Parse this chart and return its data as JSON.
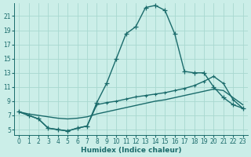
{
  "xlabel": "Humidex (Indice chaleur)",
  "bg_color": "#cbeee8",
  "line_color": "#1a6b6b",
  "grid_color": "#a8d8d0",
  "xlim": [
    -0.5,
    23.5
  ],
  "ylim": [
    4.2,
    22.8
  ],
  "xticks": [
    0,
    1,
    2,
    3,
    4,
    5,
    6,
    7,
    8,
    9,
    10,
    11,
    12,
    13,
    14,
    15,
    16,
    17,
    18,
    19,
    20,
    21,
    22,
    23
  ],
  "yticks": [
    5,
    7,
    9,
    11,
    13,
    15,
    17,
    19,
    21
  ],
  "curve1_x": [
    0,
    1,
    2,
    3,
    4,
    5,
    6,
    7,
    8,
    9,
    10,
    11,
    12,
    13,
    14,
    15,
    16,
    17,
    18,
    19,
    20,
    21,
    22,
    23
  ],
  "curve1_y": [
    7.5,
    7.0,
    6.5,
    5.2,
    5.0,
    4.8,
    5.2,
    5.5,
    8.8,
    11.5,
    15.0,
    18.5,
    19.5,
    22.2,
    22.5,
    21.8,
    18.5,
    13.2,
    13.0,
    13.0,
    11.0,
    9.5,
    8.5,
    8.0
  ],
  "curve2_x": [
    0,
    1,
    2,
    3,
    4,
    5,
    6,
    7,
    8,
    9,
    10,
    11,
    12,
    13,
    14,
    15,
    16,
    17,
    18,
    19,
    20,
    21,
    22,
    23
  ],
  "curve2_y": [
    7.5,
    7.0,
    6.5,
    5.2,
    5.0,
    4.8,
    5.2,
    5.5,
    8.5,
    8.8,
    9.0,
    9.3,
    9.6,
    9.8,
    10.0,
    10.2,
    10.5,
    10.8,
    11.2,
    11.8,
    12.5,
    11.5,
    9.2,
    8.0
  ],
  "curve3_x": [
    0,
    1,
    2,
    3,
    4,
    5,
    6,
    7,
    8,
    9,
    10,
    11,
    12,
    13,
    14,
    15,
    16,
    17,
    18,
    19,
    20,
    21,
    22,
    23
  ],
  "curve3_y": [
    7.5,
    7.2,
    7.0,
    6.8,
    6.6,
    6.5,
    6.6,
    6.8,
    7.2,
    7.5,
    7.8,
    8.1,
    8.4,
    8.7,
    9.0,
    9.2,
    9.5,
    9.8,
    10.1,
    10.4,
    10.7,
    10.5,
    9.5,
    8.5
  ]
}
